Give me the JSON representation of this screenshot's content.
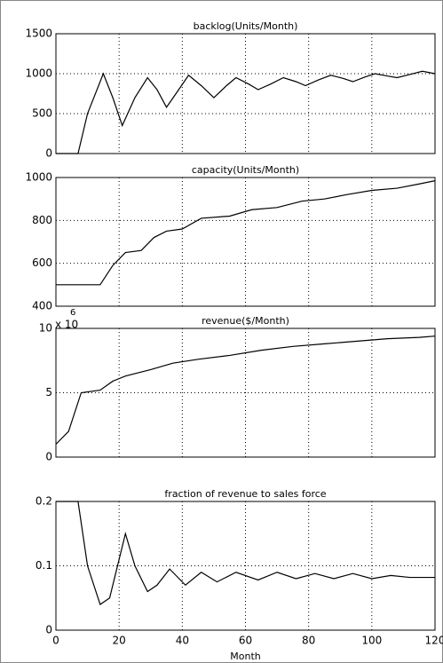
{
  "chart_data": [
    {
      "type": "line",
      "title": "backlog(Units/Month)",
      "x": [
        0,
        7,
        10,
        15,
        18,
        21,
        25,
        29,
        32,
        35,
        38,
        42,
        46,
        50,
        54,
        57,
        61,
        64,
        68,
        72,
        76,
        79,
        83,
        87,
        91,
        94,
        98,
        101,
        105,
        108,
        112,
        116,
        120
      ],
      "series": [
        {
          "color": "#000000",
          "values": [
            0,
            0,
            500,
            1000,
            700,
            350,
            700,
            950,
            800,
            580,
            750,
            980,
            850,
            700,
            850,
            950,
            870,
            800,
            870,
            950,
            900,
            850,
            920,
            980,
            940,
            900,
            960,
            1000,
            970,
            950,
            990,
            1030,
            1000
          ]
        }
      ],
      "xlim": [
        0,
        120
      ],
      "xticks": [
        0,
        20,
        40,
        60,
        80,
        100,
        120
      ],
      "ylim": [
        0,
        1500
      ],
      "yticks": [
        0,
        500,
        1000,
        1500
      ],
      "grid": true
    },
    {
      "type": "line",
      "title": "capacity(Units/Month)",
      "x": [
        0,
        14,
        18,
        22,
        27,
        31,
        35,
        40,
        46,
        55,
        62,
        70,
        78,
        85,
        92,
        100,
        108,
        115,
        120
      ],
      "series": [
        {
          "color": "#000000",
          "values": [
            500,
            500,
            590,
            650,
            660,
            720,
            750,
            760,
            810,
            820,
            850,
            860,
            890,
            900,
            920,
            940,
            950,
            970,
            985
          ]
        }
      ],
      "xlim": [
        0,
        120
      ],
      "xticks": [
        0,
        20,
        40,
        60,
        80,
        100,
        120
      ],
      "ylim": [
        400,
        1000
      ],
      "yticks": [
        400,
        600,
        800,
        1000
      ],
      "grid": true
    },
    {
      "type": "line",
      "title": "revenue($/Month)",
      "multiplier": "x 10",
      "multiplier_exponent": "6",
      "x": [
        0,
        4,
        8,
        14,
        18,
        22,
        30,
        37,
        45,
        55,
        65,
        75,
        85,
        95,
        105,
        115,
        120
      ],
      "series": [
        {
          "color": "#000000",
          "values": [
            1,
            2,
            5,
            5.2,
            5.9,
            6.3,
            6.8,
            7.3,
            7.6,
            7.9,
            8.3,
            8.6,
            8.8,
            9,
            9.2,
            9.3,
            9.4
          ]
        }
      ],
      "xlim": [
        0,
        120
      ],
      "xticks": [
        0,
        20,
        40,
        60,
        80,
        100,
        120
      ],
      "ylim": [
        0,
        10
      ],
      "yticks": [
        0,
        5,
        10
      ],
      "grid": true
    },
    {
      "type": "line",
      "title": "fraction of revenue to sales force",
      "xlabel": "Month",
      "x": [
        0,
        7,
        10,
        14,
        17,
        22,
        25,
        29,
        32,
        36,
        41,
        46,
        51,
        57,
        64,
        70,
        76,
        82,
        88,
        94,
        100,
        106,
        112,
        120
      ],
      "series": [
        {
          "color": "#000000",
          "values": [
            0.2,
            0.2,
            0.1,
            0.04,
            0.05,
            0.15,
            0.1,
            0.06,
            0.07,
            0.095,
            0.07,
            0.09,
            0.075,
            0.09,
            0.078,
            0.09,
            0.08,
            0.088,
            0.08,
            0.088,
            0.08,
            0.085,
            0.082,
            0.082
          ]
        }
      ],
      "xlim": [
        0,
        120
      ],
      "xticks": [
        0,
        20,
        40,
        60,
        80,
        100,
        120
      ],
      "ylim": [
        0,
        0.2
      ],
      "yticks": [
        0,
        0.1,
        0.2
      ],
      "grid": true
    }
  ]
}
